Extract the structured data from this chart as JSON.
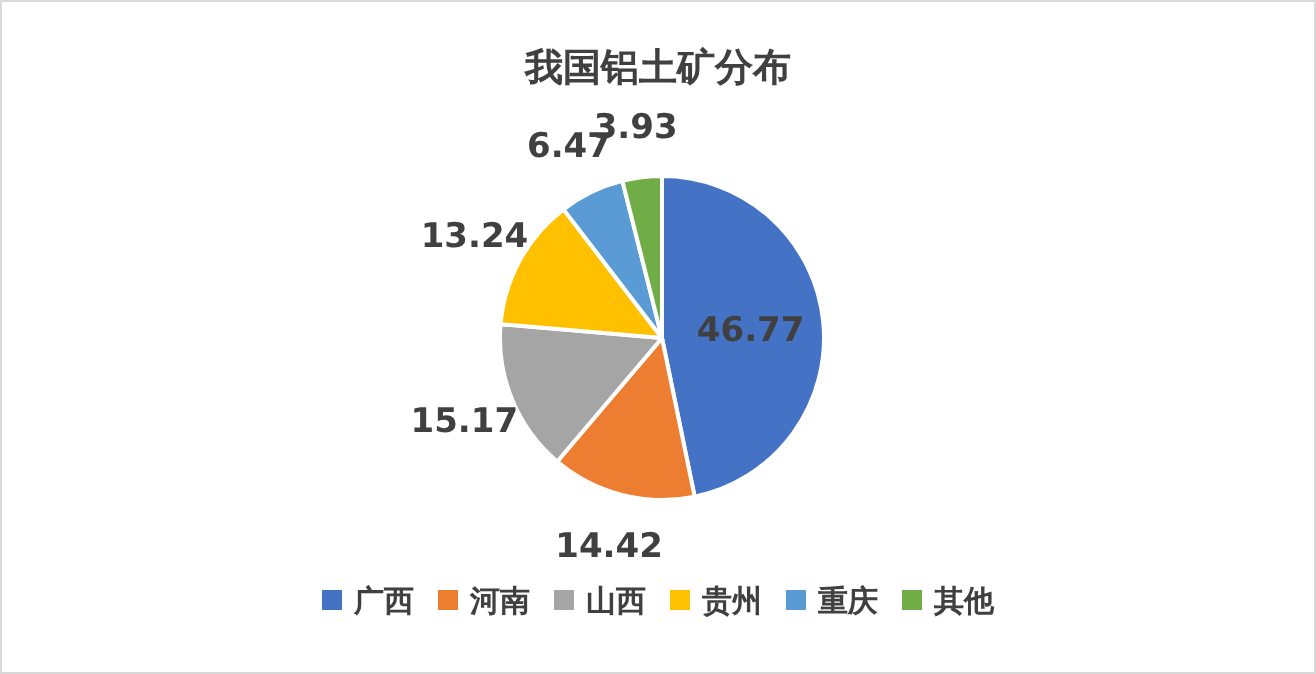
{
  "chart_data": {
    "type": "pie",
    "title": "我国铝土矿分布",
    "categories": [
      "广西",
      "河南",
      "山西",
      "贵州",
      "重庆",
      "其他"
    ],
    "values": [
      46.77,
      14.42,
      15.17,
      13.24,
      6.47,
      3.93
    ],
    "colors": [
      "#4472c4",
      "#ed7d31",
      "#a5a5a5",
      "#ffc000",
      "#5b9bd5",
      "#70ad47"
    ],
    "data_labels": true,
    "legend": "bottom"
  }
}
